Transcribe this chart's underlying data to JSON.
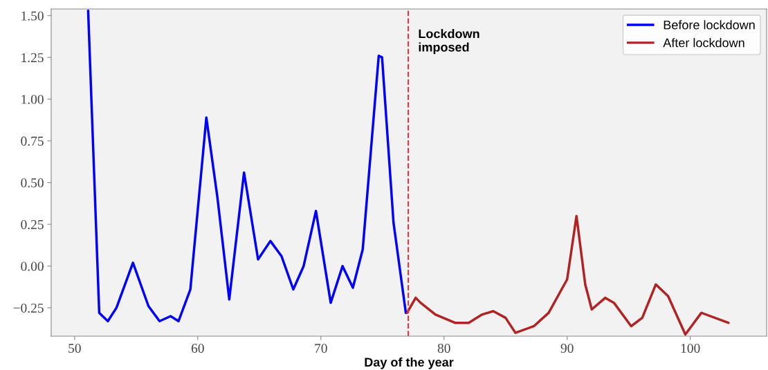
{
  "chart_data": {
    "type": "line",
    "xlabel": "Day of the year",
    "xlim": [
      48.1,
      106.2
    ],
    "xticks": [
      50,
      60,
      70,
      80,
      90,
      100
    ],
    "ylim": [
      -0.42,
      1.54
    ],
    "yticks": [
      {
        "value": -0.25,
        "label": "−0.25"
      },
      {
        "value": 0,
        "label": "0.00"
      },
      {
        "value": 0.25,
        "label": "0.25"
      },
      {
        "value": 0.5,
        "label": "0.50"
      },
      {
        "value": 0.75,
        "label": "0.75"
      },
      {
        "value": 1,
        "label": "1.00"
      },
      {
        "value": 1.25,
        "label": "1.25"
      },
      {
        "value": 1.5,
        "label": "1.50"
      }
    ],
    "series": [
      {
        "name": "Before lockdown",
        "color": "#0000ff",
        "x": [
          51.1,
          52.0,
          52.7,
          53.4,
          54.74,
          56.0,
          56.9,
          57.8,
          58.44,
          59.4,
          60.7,
          61.6,
          62.56,
          63.76,
          64.9,
          65.9,
          66.8,
          67.76,
          68.6,
          69.6,
          70.8,
          71.76,
          72.6,
          73.4,
          74.7,
          74.97,
          75.9,
          76.9
        ],
        "values": [
          1.53,
          -0.28,
          -0.33,
          -0.25,
          0.02,
          -0.24,
          -0.33,
          -0.3,
          -0.33,
          -0.14,
          0.89,
          0.41,
          -0.2,
          0.56,
          0.04,
          0.15,
          0.06,
          -0.14,
          0.0,
          0.33,
          -0.22,
          0.0,
          -0.13,
          0.1,
          1.26,
          1.25,
          0.26,
          -0.28
        ]
      },
      {
        "name": "After lockdown",
        "color": "#b22222",
        "x": [
          77.0,
          77.7,
          78.1,
          79.3,
          80.9,
          82.0,
          83.1,
          84.0,
          85.0,
          85.8,
          87.3,
          88.5,
          90.0,
          90.76,
          91.47,
          92.0,
          93.1,
          93.8,
          95.2,
          96.1,
          97.2,
          98.2,
          99.6,
          100.9,
          103.1
        ],
        "values": [
          -0.28,
          -0.19,
          -0.22,
          -0.29,
          -0.34,
          -0.34,
          -0.29,
          -0.27,
          -0.31,
          -0.4,
          -0.36,
          -0.28,
          -0.08,
          0.3,
          -0.11,
          -0.26,
          -0.19,
          -0.22,
          -0.36,
          -0.31,
          -0.11,
          -0.18,
          -0.41,
          -0.28,
          -0.34
        ]
      }
    ],
    "ref_lines": [
      {
        "axis": "x",
        "value": 77.1,
        "label": "Lockdown\nimposed",
        "color": "#e0353a",
        "line_style": "dashed"
      }
    ],
    "legend": "top right",
    "grid": false,
    "marker": "none",
    "line_style": "solid"
  }
}
